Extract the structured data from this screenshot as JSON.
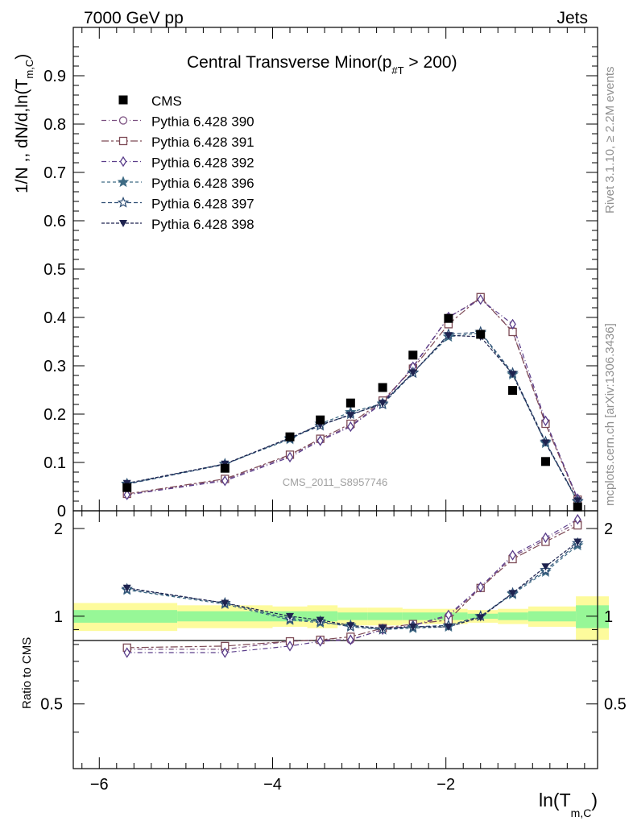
{
  "header": {
    "energy_label": "7000 GeV pp",
    "process_label": "Jets",
    "title_main": "Central Transverse Minor(p",
    "title_sub": "#T",
    "title_tail": " > 200)",
    "watermark": "CMS_2011_S8957746",
    "right_label_top": "Rivet 3.1.10, ≥ 2.2M events",
    "right_label_bottom": "mcplots.cern.ch [arXiv:1306.3436]"
  },
  "axes": {
    "ylabel_main": "1/N ,, dN/d,ln(T",
    "ylabel_main_sub": "m,C",
    "ylabel_main_tail": ")",
    "ylabel_ratio": "Ratio to CMS",
    "xlabel": "ln(T",
    "xlabel_sub": "m,C",
    "xlabel_tail": ")"
  },
  "chart_data": {
    "type": "scatter",
    "xlim": [
      -6.3,
      -0.25
    ],
    "ylim": [
      0,
      1.0
    ],
    "ratio_ylim": [
      0.3,
      2.3
    ],
    "x_ticks": [
      -6,
      -4,
      -2
    ],
    "x_tick_labels": [
      "−6",
      "−4",
      "−2"
    ],
    "y_ticks": [
      0,
      0.1,
      0.2,
      0.3,
      0.4,
      0.5,
      0.6,
      0.7,
      0.8,
      0.9
    ],
    "y_tick_labels": [
      "0",
      "0.1",
      "0.2",
      "0.3",
      "0.4",
      "0.5",
      "0.6",
      "0.7",
      "0.8",
      "0.9"
    ],
    "ratio_ticks": [
      0.5,
      1,
      2
    ],
    "ratio_tick_labels": [
      "0.5",
      "1",
      "2"
    ],
    "bin_edges": [
      -6.3,
      -5.1,
      -4.0,
      -3.6,
      -3.25,
      -2.9,
      -2.5,
      -2.15,
      -1.75,
      -1.4,
      -1.05,
      -0.5,
      -0.12
    ],
    "band_yellow_lo": [
      0.89,
      0.91,
      0.92,
      0.91,
      0.93,
      0.93,
      0.94,
      0.94,
      0.95,
      0.94,
      0.92,
      0.83
    ],
    "band_yellow_hi": [
      1.11,
      1.09,
      1.08,
      1.09,
      1.07,
      1.07,
      1.06,
      1.06,
      1.05,
      1.06,
      1.08,
      1.17
    ],
    "band_green_lo": [
      0.95,
      0.96,
      0.96,
      0.96,
      0.97,
      0.97,
      0.97,
      0.97,
      0.98,
      0.97,
      0.96,
      0.91
    ],
    "band_green_hi": [
      1.05,
      1.04,
      1.04,
      1.04,
      1.03,
      1.03,
      1.03,
      1.03,
      1.02,
      1.03,
      1.04,
      1.09
    ],
    "x": [
      -5.68,
      -4.55,
      -3.8,
      -3.45,
      -3.1,
      -2.73,
      -2.38,
      -1.97,
      -1.6,
      -1.23,
      -0.85,
      -0.48
    ],
    "reference": {
      "name": "CMS",
      "color": "#000000",
      "values": [
        0.048,
        0.088,
        0.153,
        0.188,
        0.223,
        0.255,
        0.322,
        0.398,
        0.365,
        0.249,
        0.102,
        0.008
      ]
    },
    "series": [
      {
        "name": "Pythia 6.428 390",
        "color": "#7a4e7f",
        "dash": "6,3,1,3",
        "marker": "open-circle",
        "values": [
          0.034,
          0.064,
          0.114,
          0.147,
          0.176,
          0.225,
          0.297,
          0.4,
          0.44,
          0.372,
          0.183,
          0.024
        ],
        "ratio": [
          0.77,
          0.77,
          0.82,
          0.83,
          0.83,
          0.9,
          0.93,
          1.0,
          1.25,
          1.6,
          1.83,
          2.1
        ]
      },
      {
        "name": "Pythia 6.428 391",
        "color": "#7d4a55",
        "dash": "9,3,3,3",
        "marker": "open-square",
        "values": [
          0.035,
          0.066,
          0.116,
          0.149,
          0.18,
          0.228,
          0.294,
          0.386,
          0.442,
          0.37,
          0.18,
          0.023
        ],
        "ratio": [
          0.78,
          0.79,
          0.82,
          0.83,
          0.85,
          0.91,
          0.94,
          0.97,
          1.25,
          1.57,
          1.8,
          2.05
        ]
      },
      {
        "name": "Pythia 6.428 392",
        "color": "#5a3d8a",
        "dash": "6,3,1,3",
        "marker": "open-diamond",
        "values": [
          0.033,
          0.062,
          0.111,
          0.145,
          0.174,
          0.223,
          0.298,
          0.401,
          0.437,
          0.386,
          0.186,
          0.025
        ],
        "ratio": [
          0.75,
          0.75,
          0.79,
          0.82,
          0.83,
          0.9,
          0.93,
          1.01,
          1.26,
          1.62,
          1.86,
          2.15
        ]
      },
      {
        "name": "Pythia 6.428 396",
        "color": "#3e6b84",
        "dash": "4,3",
        "marker": "star",
        "values": [
          0.056,
          0.097,
          0.148,
          0.18,
          0.204,
          0.222,
          0.286,
          0.36,
          0.368,
          0.282,
          0.14,
          0.019
        ],
        "ratio": [
          1.23,
          1.1,
          0.97,
          0.95,
          0.93,
          0.9,
          0.91,
          0.92,
          1.0,
          1.19,
          1.42,
          1.75
        ]
      },
      {
        "name": "Pythia 6.428 397",
        "color": "#2e4e74",
        "dash": "5,3",
        "marker": "open-star",
        "values": [
          0.055,
          0.096,
          0.15,
          0.176,
          0.2,
          0.22,
          0.285,
          0.365,
          0.37,
          0.285,
          0.143,
          0.02
        ],
        "ratio": [
          1.24,
          1.11,
          0.98,
          0.96,
          0.92,
          0.9,
          0.92,
          0.93,
          1.0,
          1.2,
          1.44,
          1.78
        ]
      },
      {
        "name": "Pythia 6.428 398",
        "color": "#1e234f",
        "dash": "4,2",
        "marker": "down-triangle",
        "values": [
          0.057,
          0.097,
          0.151,
          0.178,
          0.198,
          0.223,
          0.286,
          0.363,
          0.36,
          0.283,
          0.141,
          0.021
        ],
        "ratio": [
          1.25,
          1.11,
          1.0,
          0.97,
          0.93,
          0.91,
          0.92,
          0.92,
          0.99,
          1.2,
          1.48,
          1.8
        ]
      }
    ]
  }
}
